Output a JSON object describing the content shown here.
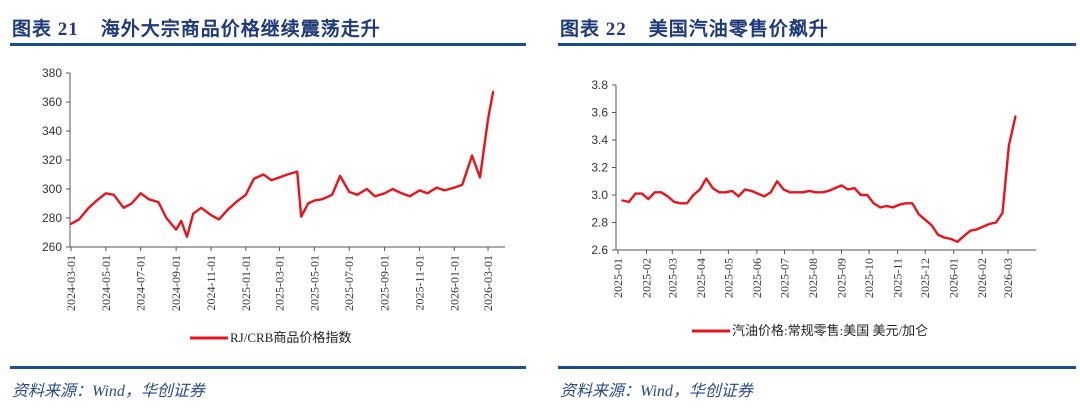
{
  "left_panel": {
    "figure_number": "图表 21",
    "title": "海外大宗商品价格继续震荡走升",
    "source": "资料来源：Wind，华创证券",
    "legend": "RJ/CRB商品价格指数"
  },
  "right_panel": {
    "figure_number": "图表 22",
    "title": "美国汽油零售价飙升",
    "source": "资料来源：Wind，华创证券",
    "legend": "汽油价格:常规零售:美国 美元/加仑"
  },
  "colors": {
    "series": "#e8141c",
    "title": "#1f3a78",
    "rule": "#1f4e8c",
    "axis": "#555555"
  },
  "chart_data": [
    {
      "type": "line",
      "title": "海外大宗商品价格继续震荡走升",
      "xlabel": "",
      "ylabel": "",
      "ylim": [
        260,
        380
      ],
      "yticks": [
        260,
        280,
        300,
        320,
        340,
        360,
        380
      ],
      "grid": false,
      "legend_position": "bottom",
      "categories": [
        "2024-03-01",
        "2024-05-01",
        "2024-07-01",
        "2024-09-01",
        "2024-11-01",
        "2025-01-01",
        "2025-03-01",
        "2025-05-01",
        "2025-07-01",
        "2025-09-01",
        "2025-11-01",
        "2026-01-01",
        "2026-03-01"
      ],
      "series": [
        {
          "name": "RJ/CRB商品价格指数",
          "x": [
            "2024-03-01",
            "2024-03-15",
            "2024-04-01",
            "2024-04-15",
            "2024-05-01",
            "2024-05-15",
            "2024-06-01",
            "2024-06-15",
            "2024-07-01",
            "2024-07-15",
            "2024-08-01",
            "2024-08-15",
            "2024-09-01",
            "2024-09-10",
            "2024-09-20",
            "2024-10-01",
            "2024-10-15",
            "2024-11-01",
            "2024-11-15",
            "2024-12-01",
            "2024-12-15",
            "2025-01-01",
            "2025-01-15",
            "2025-02-01",
            "2025-02-15",
            "2025-03-01",
            "2025-03-15",
            "2025-04-01",
            "2025-04-08",
            "2025-04-20",
            "2025-05-01",
            "2025-05-15",
            "2025-06-01",
            "2025-06-15",
            "2025-07-01",
            "2025-07-15",
            "2025-08-01",
            "2025-08-15",
            "2025-09-01",
            "2025-09-15",
            "2025-10-01",
            "2025-10-15",
            "2025-11-01",
            "2025-11-15",
            "2025-12-01",
            "2025-12-15",
            "2026-01-01",
            "2026-01-15",
            "2026-02-01",
            "2026-02-15",
            "2026-03-01",
            "2026-03-10"
          ],
          "values": [
            276,
            279,
            287,
            292,
            297,
            296,
            287,
            290,
            297,
            293,
            291,
            280,
            272,
            278,
            267,
            283,
            287,
            282,
            279,
            286,
            291,
            296,
            307,
            310,
            306,
            308,
            310,
            312,
            281,
            290,
            292,
            293,
            296,
            309,
            298,
            296,
            300,
            295,
            297,
            300,
            297,
            295,
            299,
            297,
            301,
            299,
            301,
            303,
            323,
            308,
            348,
            367
          ]
        }
      ]
    },
    {
      "type": "line",
      "title": "美国汽油零售价飙升",
      "xlabel": "",
      "ylabel": "美元/加仑",
      "ylim": [
        2.6,
        3.8
      ],
      "yticks": [
        2.6,
        2.8,
        3.0,
        3.2,
        3.4,
        3.6,
        3.8
      ],
      "grid": false,
      "legend_position": "bottom",
      "categories": [
        "2025-01",
        "2025-02",
        "2025-03",
        "2025-04",
        "2025-05",
        "2025-06",
        "2025-07",
        "2025-08",
        "2025-09",
        "2025-10",
        "2025-11",
        "2025-12",
        "2026-01",
        "2026-02",
        "2026-03"
      ],
      "series": [
        {
          "name": "汽油价格:常规零售:美国 美元/加仑",
          "x": [
            "2025-01-06",
            "2025-01-13",
            "2025-01-20",
            "2025-01-27",
            "2025-02-03",
            "2025-02-10",
            "2025-02-17",
            "2025-02-24",
            "2025-03-03",
            "2025-03-10",
            "2025-03-17",
            "2025-03-24",
            "2025-03-31",
            "2025-04-07",
            "2025-04-14",
            "2025-04-21",
            "2025-04-28",
            "2025-05-05",
            "2025-05-12",
            "2025-05-19",
            "2025-05-26",
            "2025-06-02",
            "2025-06-09",
            "2025-06-16",
            "2025-06-23",
            "2025-06-30",
            "2025-07-07",
            "2025-07-14",
            "2025-07-21",
            "2025-07-28",
            "2025-08-04",
            "2025-08-11",
            "2025-08-18",
            "2025-08-25",
            "2025-09-01",
            "2025-09-08",
            "2025-09-15",
            "2025-09-22",
            "2025-09-29",
            "2025-10-06",
            "2025-10-13",
            "2025-10-20",
            "2025-10-27",
            "2025-11-03",
            "2025-11-10",
            "2025-11-17",
            "2025-11-24",
            "2025-12-01",
            "2025-12-08",
            "2025-12-15",
            "2025-12-22",
            "2025-12-29",
            "2026-01-05",
            "2026-01-12",
            "2026-01-19",
            "2026-01-26",
            "2026-02-02",
            "2026-02-09",
            "2026-02-16",
            "2026-02-23",
            "2026-03-02",
            "2026-03-09"
          ],
          "values": [
            2.96,
            2.95,
            3.01,
            3.01,
            2.97,
            3.02,
            3.02,
            2.99,
            2.95,
            2.94,
            2.94,
            3.0,
            3.04,
            3.12,
            3.05,
            3.02,
            3.02,
            3.03,
            2.99,
            3.04,
            3.03,
            3.01,
            2.99,
            3.02,
            3.1,
            3.04,
            3.02,
            3.02,
            3.02,
            3.03,
            3.02,
            3.02,
            3.03,
            3.05,
            3.07,
            3.04,
            3.05,
            3.0,
            3.0,
            2.94,
            2.91,
            2.92,
            2.91,
            2.93,
            2.94,
            2.94,
            2.86,
            2.82,
            2.78,
            2.71,
            2.69,
            2.68,
            2.66,
            2.7,
            2.74,
            2.75,
            2.77,
            2.79,
            2.8,
            2.87,
            3.36,
            3.57
          ]
        }
      ]
    }
  ]
}
